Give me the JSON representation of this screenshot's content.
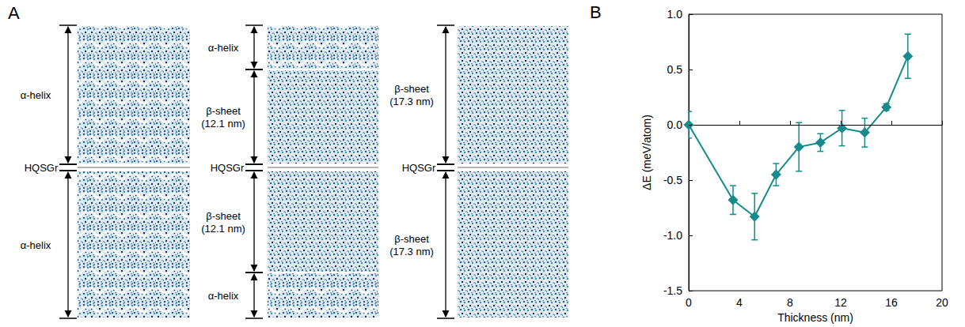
{
  "panel_a": {
    "letter": "A",
    "columns": [
      {
        "segments": [
          "α-helix",
          "HQSGr",
          "α-helix"
        ]
      },
      {
        "segments": [
          "α-helix",
          "β-sheet (12.1 nm)",
          "HQSGr",
          "β-sheet (12.1 nm)",
          "α-helix"
        ]
      },
      {
        "segments": [
          "β-sheet (17.3 nm)",
          "HQSGr",
          "β-sheet (17.3 nm)"
        ]
      }
    ]
  },
  "chart_data": {
    "type": "line",
    "panel_letter": "B",
    "x_label": "Thickness (nm)",
    "y_label": "ΔE (meV/atom)",
    "x": [
      0,
      3.5,
      5.2,
      6.9,
      8.7,
      10.4,
      12.1,
      13.9,
      15.6,
      17.3
    ],
    "values": [
      0,
      -0.68,
      -0.83,
      -0.45,
      -0.2,
      -0.16,
      -0.03,
      -0.07,
      0.16,
      0.62
    ],
    "errors": [
      0.12,
      0.13,
      0.21,
      0.1,
      0.22,
      0.08,
      0.16,
      0.13,
      0.03,
      0.2
    ],
    "color": "#158b8b",
    "marker": "diamond",
    "line_style": "solid",
    "reference_line": 0,
    "xlim": [
      0,
      20
    ],
    "xticks": [
      0,
      4,
      8,
      12,
      16,
      20
    ],
    "ylim": [
      -1.5,
      1.0
    ],
    "yticks": [
      {
        "value": -1.5,
        "label": "-1.5"
      },
      {
        "value": -1.0,
        "label": "-1.0"
      },
      {
        "value": -0.5,
        "label": "-0.5"
      },
      {
        "value": 0,
        "label": "0.0"
      },
      {
        "value": 0.5,
        "label": "0.5"
      },
      {
        "value": 1.0,
        "label": "1.0"
      }
    ],
    "grid": false
  }
}
